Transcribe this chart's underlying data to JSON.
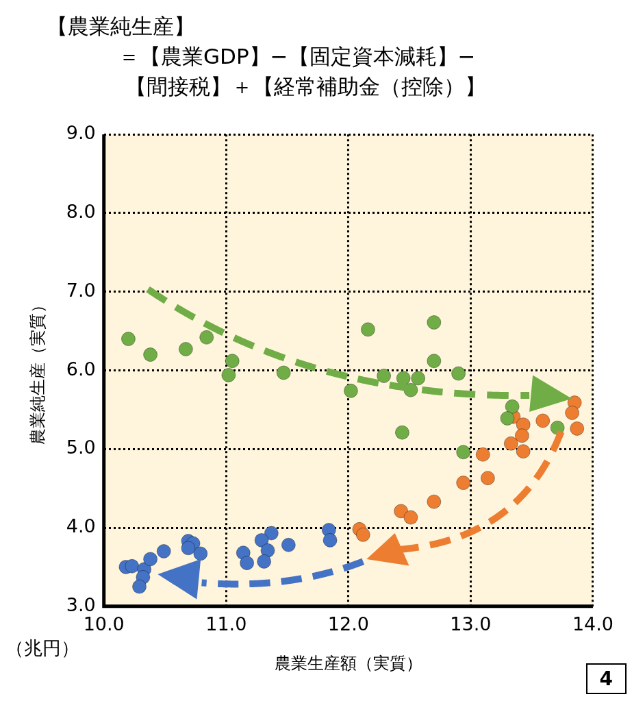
{
  "chart_data": {
    "type": "scatter",
    "title": "【農業純生産】",
    "subtitle": "＝【農業GDP】−【固定資本減耗】−【間接税】＋【経常補助金（控除）】",
    "xlabel": "農業生産額（実質）",
    "ylabel": "農業純生産（実質）",
    "annotations": [
      "（兆円）",
      "4"
    ],
    "series": [
      {
        "color": "#70ad47",
        "x": [
          10.2,
          10.38,
          10.67,
          10.84,
          11.05,
          11.02,
          11.47,
          12.16,
          12.7,
          12.7,
          12.02,
          12.29,
          12.45,
          12.57,
          12.51,
          12.9,
          12.44,
          13.34,
          13.3,
          13.71,
          12.94
        ],
        "values": [
          6.4,
          6.2,
          6.27,
          6.42,
          6.12,
          5.94,
          5.97,
          6.52,
          6.61,
          6.12,
          5.74,
          5.93,
          5.9,
          5.9,
          5.75,
          5.96,
          5.21,
          5.54,
          5.39,
          5.27,
          4.96
        ]
      },
      {
        "color": "#ed7d31",
        "x": [
          13.85,
          13.83,
          13.87,
          13.35,
          13.43,
          13.59,
          13.42,
          13.33,
          13.43,
          13.1,
          13.14,
          12.94,
          12.7,
          12.43,
          12.51,
          12.09,
          12.12
        ],
        "values": [
          5.59,
          5.46,
          5.26,
          5.41,
          5.31,
          5.36,
          5.17,
          5.07,
          4.97,
          4.93,
          4.63,
          4.57,
          4.33,
          4.21,
          4.13,
          3.98,
          3.91
        ]
      },
      {
        "color": "#4472c4",
        "x": [
          10.18,
          10.23,
          10.33,
          10.32,
          10.29,
          10.38,
          10.49,
          10.69,
          10.73,
          10.69,
          10.79,
          11.14,
          11.17,
          11.37,
          11.29,
          11.34,
          11.31,
          11.51,
          11.84,
          11.85
        ],
        "values": [
          3.5,
          3.51,
          3.47,
          3.37,
          3.25,
          3.6,
          3.7,
          3.83,
          3.8,
          3.74,
          3.67,
          3.68,
          3.55,
          3.93,
          3.84,
          3.71,
          3.57,
          3.78,
          3.97,
          3.84
        ]
      }
    ],
    "xlim": [
      10,
      14
    ],
    "xticks": [
      {
        "value": 10,
        "label": "10.0"
      },
      {
        "value": 11,
        "label": "11.0"
      },
      {
        "value": 12,
        "label": "12.0"
      },
      {
        "value": 13,
        "label": "13.0"
      },
      {
        "value": 14,
        "label": "14.0"
      }
    ],
    "ylim": [
      3,
      9
    ],
    "yticks": [
      {
        "value": 3,
        "label": "3.0"
      },
      {
        "value": 4,
        "label": "4.0"
      },
      {
        "value": 5,
        "label": "5.0"
      },
      {
        "value": 6,
        "label": "6.0"
      },
      {
        "value": 7,
        "label": "7.0"
      },
      {
        "value": 8,
        "label": "8.0"
      },
      {
        "value": 9,
        "label": "9.0"
      }
    ],
    "grid": true,
    "legend": false,
    "marker": "circle"
  }
}
